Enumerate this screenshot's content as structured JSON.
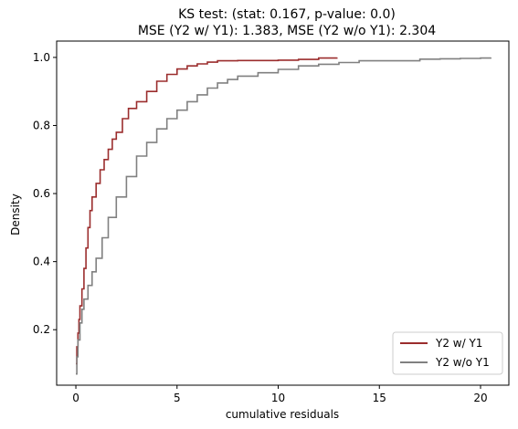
{
  "chart_data": {
    "type": "line",
    "title_line1": "KS test: (stat: 0.167, p-value: 0.0)",
    "title_line2": "MSE (Y2 w/ Y1): 1.383, MSE (Y2 w/o Y1): 2.304",
    "xlabel": "cumulative residuals",
    "ylabel": "Density",
    "xlim": [
      -0.95,
      21.4
    ],
    "ylim": [
      0.037,
      1.048
    ],
    "xticks": [
      0,
      5,
      10,
      15,
      20
    ],
    "yticks": [
      0.2,
      0.4,
      0.6,
      0.8,
      1.0
    ],
    "xtick_labels": [
      "0",
      "5",
      "10",
      "15",
      "20"
    ],
    "ytick_labels": [
      "0.2",
      "0.4",
      "0.6",
      "0.8",
      "1.0"
    ],
    "grid": false,
    "legend_position": "lower-right",
    "series": [
      {
        "name": "Y2 w/ Y1",
        "color": "#9b2d2d",
        "x": [
          0.0,
          0.05,
          0.1,
          0.15,
          0.2,
          0.3,
          0.4,
          0.5,
          0.6,
          0.7,
          0.8,
          1.0,
          1.2,
          1.4,
          1.6,
          1.8,
          2.0,
          2.3,
          2.6,
          3.0,
          3.5,
          4.0,
          4.5,
          5.0,
          5.5,
          6.0,
          6.5,
          7.0,
          8.0,
          9.0,
          10.0,
          11.0,
          12.0,
          12.9
        ],
        "y": [
          0.1,
          0.15,
          0.19,
          0.23,
          0.27,
          0.32,
          0.38,
          0.44,
          0.5,
          0.55,
          0.59,
          0.63,
          0.67,
          0.7,
          0.73,
          0.76,
          0.78,
          0.82,
          0.85,
          0.87,
          0.9,
          0.93,
          0.95,
          0.966,
          0.975,
          0.981,
          0.986,
          0.99,
          0.991,
          0.991,
          0.992,
          0.994,
          0.998,
          1.0
        ]
      },
      {
        "name": "Y2 w/o Y1",
        "color": "#808080",
        "x": [
          0.0,
          0.05,
          0.1,
          0.2,
          0.3,
          0.4,
          0.6,
          0.8,
          1.0,
          1.3,
          1.6,
          2.0,
          2.5,
          3.0,
          3.5,
          4.0,
          4.5,
          5.0,
          5.5,
          6.0,
          6.5,
          7.0,
          7.5,
          8.0,
          9.0,
          10.0,
          11.0,
          12.0,
          13.0,
          14.0,
          16.0,
          17.0,
          18.0,
          19.0,
          20.0,
          20.5
        ],
        "y": [
          0.07,
          0.12,
          0.17,
          0.22,
          0.26,
          0.29,
          0.33,
          0.37,
          0.41,
          0.47,
          0.53,
          0.59,
          0.65,
          0.71,
          0.75,
          0.79,
          0.82,
          0.845,
          0.87,
          0.89,
          0.91,
          0.925,
          0.935,
          0.945,
          0.955,
          0.965,
          0.975,
          0.98,
          0.985,
          0.99,
          0.99,
          0.995,
          0.996,
          0.997,
          0.998,
          1.0
        ]
      }
    ]
  }
}
